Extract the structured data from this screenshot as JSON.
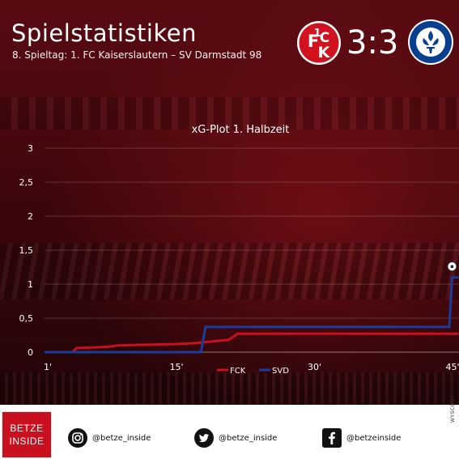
{
  "header": {
    "title": "Spielstatistiken",
    "subtitle": "8. Spieltag: 1. FC Kaiserslautern – SV Darmstadt 98",
    "score": "3:3"
  },
  "colors": {
    "fck": "#c8101e",
    "svd": "#1c3c9c",
    "background": "#4a0a10"
  },
  "chart_data": {
    "type": "line",
    "title": "xG-Plot 1. Halbzeit",
    "xlabel": "",
    "ylabel": "",
    "xlim": [
      1,
      45
    ],
    "ylim": [
      0,
      3
    ],
    "x_ticks": [
      {
        "value": 1,
        "label": "1'"
      },
      {
        "value": 15,
        "label": "15'"
      },
      {
        "value": 30,
        "label": "30'"
      },
      {
        "value": 45,
        "label": "45'"
      }
    ],
    "y_ticks": [
      {
        "value": 0,
        "label": "0"
      },
      {
        "value": 0.5,
        "label": "0,5"
      },
      {
        "value": 1,
        "label": "1"
      },
      {
        "value": 1.5,
        "label": "1,5"
      },
      {
        "value": 2,
        "label": "2"
      },
      {
        "value": 2.5,
        "label": "2,5"
      },
      {
        "value": 3,
        "label": "3"
      }
    ],
    "grid": true,
    "legend": "bottom",
    "series": [
      {
        "name": "FCK",
        "color": "#c8101e",
        "step": true,
        "points": [
          [
            1,
            0
          ],
          [
            4,
            0
          ],
          [
            4.5,
            0.06
          ],
          [
            8,
            0.08
          ],
          [
            9,
            0.1
          ],
          [
            15.5,
            0.12
          ],
          [
            17,
            0.13
          ],
          [
            21,
            0.18
          ],
          [
            22,
            0.27
          ],
          [
            46,
            0.27
          ]
        ]
      },
      {
        "name": "SVD",
        "color": "#1c3c9c",
        "step": true,
        "points": [
          [
            1,
            0
          ],
          [
            18,
            0
          ],
          [
            18.5,
            0.37
          ],
          [
            45,
            0.37
          ],
          [
            45.3,
            1.1
          ],
          [
            46,
            1.1
          ]
        ]
      }
    ],
    "annotations": [
      {
        "icon": "football-icon",
        "x": 45.3,
        "y": 1.26
      }
    ]
  },
  "footer": {
    "brand_line1": "BETZE",
    "brand_line2": "INSIDE",
    "instagram": "@betze_inside",
    "twitter": "@betze_inside",
    "facebook": "@betzeinside",
    "credit": "WYSCOUT"
  }
}
